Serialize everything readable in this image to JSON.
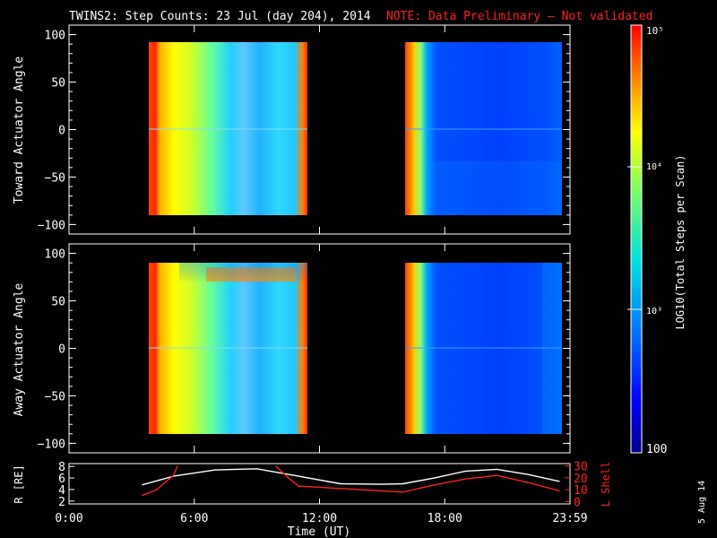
{
  "title": "TWINS2: Step Counts: 23 Jul (day 204), 2014",
  "note": "NOTE: Data Preliminary – Not validated",
  "stamp": "5 Aug 14",
  "colorbar": {
    "label": "LOG10(Total Steps per Scan)",
    "ticks": [
      "10⁵",
      "10⁴",
      "10³",
      "100"
    ]
  },
  "chart_data": [
    {
      "type": "heatmap",
      "ylabel": "Toward Actuator Angle",
      "yticks": [
        "100",
        "50",
        "0",
        "−50",
        "−100"
      ],
      "ylim": [
        -110,
        110
      ],
      "x_ticks_hours": [
        0,
        6,
        12,
        18,
        24
      ]
    },
    {
      "type": "heatmap",
      "ylabel": "Away Actuator Angle",
      "yticks": [
        "100",
        "50",
        "0",
        "−50",
        "−100"
      ],
      "ylim": [
        -110,
        110
      ],
      "x_ticks_hours": [
        0,
        6,
        12,
        18,
        24
      ]
    },
    {
      "type": "line",
      "ylabel_left": "R [RE]",
      "ylabel_right": "L Shell",
      "left_ticks": [
        "8",
        "6",
        "4",
        "2"
      ],
      "right_ticks": [
        "30",
        "20",
        "10",
        "0"
      ],
      "xlabel": "Time (UT)",
      "xticks": [
        "0:00",
        "6:00",
        "12:00",
        "18:00",
        "23:59"
      ],
      "series": [
        {
          "color": "#ffffff",
          "x": [
            3.5,
            5,
            7,
            9,
            11,
            13,
            15,
            16,
            17.5,
            19,
            20.5,
            22,
            23.5
          ],
          "y": [
            4.8,
            6.3,
            7.4,
            7.6,
            6.3,
            5.0,
            4.9,
            5.0,
            6.0,
            7.2,
            7.5,
            6.6,
            5.4
          ]
        },
        {
          "color": "#ff2020",
          "x": [
            3.5,
            4.2,
            5.0,
            5.2
          ],
          "y_right": [
            5,
            10,
            22,
            30
          ]
        },
        {
          "color": "#ff2020",
          "x": [
            9.9,
            10.5,
            11.0,
            16.0,
            17.5,
            19,
            20.5,
            22,
            23.5
          ],
          "y_right": [
            30,
            20,
            13,
            8,
            14,
            19,
            22,
            16,
            9
          ]
        }
      ]
    }
  ]
}
